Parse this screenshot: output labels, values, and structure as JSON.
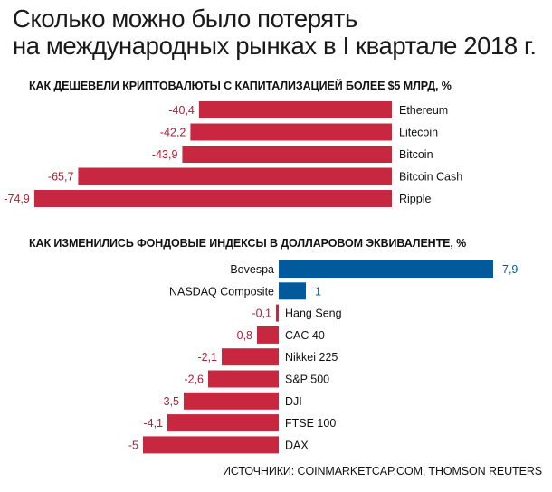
{
  "title": {
    "line1": "Сколько можно было потерять",
    "line2": "на международных рынках в I квартале 2018 г."
  },
  "colors": {
    "negative": "#c8283f",
    "positive": "#005a9c",
    "negative_text": "#b01e33",
    "positive_text": "#005a9c"
  },
  "source": "ИСТОЧНИКИ: COINMARKETCAP.COM, THOMSON REUTERS",
  "chart_data": [
    {
      "type": "bar",
      "orientation": "horizontal",
      "title": "КАК ДЕШЕВЕЛИ КРИПТОВАЛЮТЫ С КАПИТАЛИЗАЦИЕЙ БОЛЕЕ $5 МЛРД, %",
      "categories": [
        "Ethereum",
        "Litecoin",
        "Bitcoin",
        "Bitcoin Cash",
        "Ripple"
      ],
      "values": [
        -40.4,
        -42.2,
        -43.9,
        -65.7,
        -74.9
      ],
      "value_labels": [
        "-40,4",
        "-42,2",
        "-43,9",
        "-65,7",
        "-74,9"
      ],
      "xlim": [
        -80,
        0
      ]
    },
    {
      "type": "bar",
      "orientation": "horizontal",
      "title": "КАК ИЗМЕНИЛИСЬ ФОНДОВЫЕ ИНДЕКСЫ В ДОЛЛАРОВОМ ЭКВИВАЛЕНТЕ, %",
      "categories": [
        "Bovespa",
        "NASDAQ Composite",
        "Hang Seng",
        "CAC 40",
        "Nikkei 225",
        "S&P 500",
        "DJI",
        "FTSE 100",
        "DAX"
      ],
      "values": [
        7.9,
        1,
        -0.1,
        -0.8,
        -2.1,
        -2.6,
        -3.5,
        -4.1,
        -5
      ],
      "value_labels": [
        "7,9",
        "1",
        "-0,1",
        "-0,8",
        "-2,1",
        "-2,6",
        "-3,5",
        "-4,1",
        "-5"
      ],
      "xlim": [
        -6,
        8
      ]
    }
  ]
}
